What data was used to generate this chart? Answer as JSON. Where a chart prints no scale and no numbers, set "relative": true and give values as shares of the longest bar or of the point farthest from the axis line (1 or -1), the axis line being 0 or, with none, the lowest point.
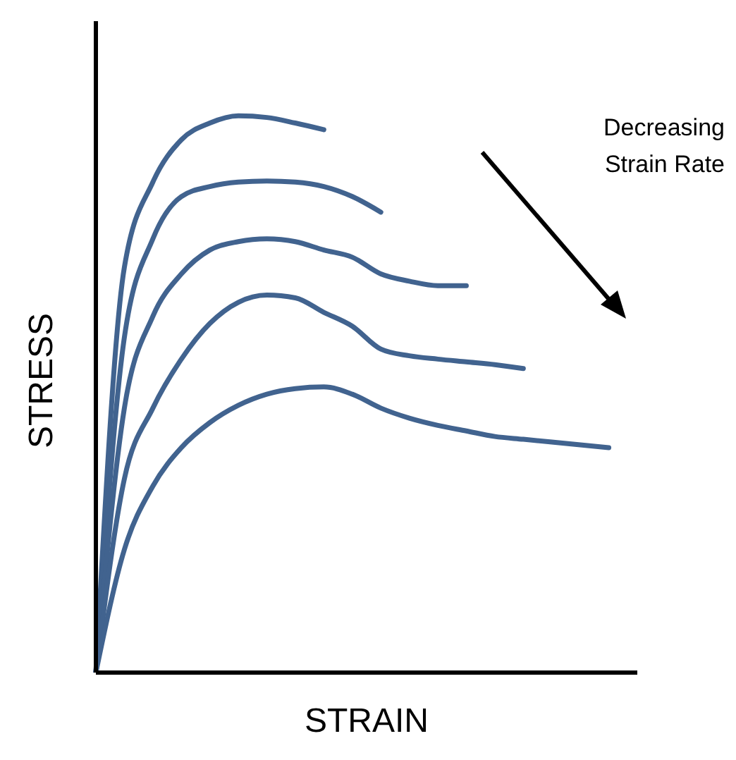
{
  "chart_data": {
    "type": "line",
    "relative": true,
    "xlabel": "STRAIN",
    "ylabel": "STRESS",
    "tick_labels": false,
    "marker": "none",
    "line_style": "solid",
    "annotations": [
      "Decreasing Strain Rate"
    ],
    "categories": [
      null,
      null,
      null,
      null,
      null,
      null,
      null,
      null,
      null,
      null,
      null,
      null,
      null,
      null,
      null,
      null,
      null,
      null,
      null,
      null
    ],
    "series": [
      {
        "color": "#41638f",
        "values": [
          0,
          0.728,
          0.881,
          0.957,
          0.987,
          1.0,
          0.997,
          0.987,
          0.975,
          null,
          null,
          null,
          null,
          null,
          null,
          null,
          null,
          null,
          null,
          null
        ]
      },
      {
        "color": "#41638f",
        "values": [
          0,
          0.602,
          0.779,
          0.855,
          0.873,
          0.881,
          0.883,
          0.881,
          0.873,
          0.855,
          0.827,
          null,
          null,
          null,
          null,
          null,
          null,
          null,
          null,
          null
        ]
      },
      {
        "color": "#41638f",
        "values": [
          0,
          0.475,
          0.64,
          0.716,
          0.759,
          0.774,
          0.779,
          0.774,
          0.759,
          0.746,
          0.716,
          0.703,
          0.695,
          0.695,
          null,
          null,
          null,
          null,
          null,
          null
        ]
      },
      {
        "color": "#41638f",
        "values": [
          0,
          0.348,
          0.475,
          0.563,
          0.627,
          0.665,
          0.678,
          0.673,
          0.647,
          0.622,
          0.581,
          0.569,
          0.563,
          0.558,
          0.553,
          0.546,
          null,
          null,
          null,
          null
        ]
      },
      {
        "color": "#41638f",
        "values": [
          0,
          0.221,
          0.335,
          0.404,
          0.449,
          0.48,
          0.5,
          0.51,
          0.513,
          0.5,
          0.475,
          0.457,
          0.444,
          0.434,
          0.424,
          0.419,
          0.414,
          0.409,
          0.404,
          null
        ]
      }
    ]
  }
}
